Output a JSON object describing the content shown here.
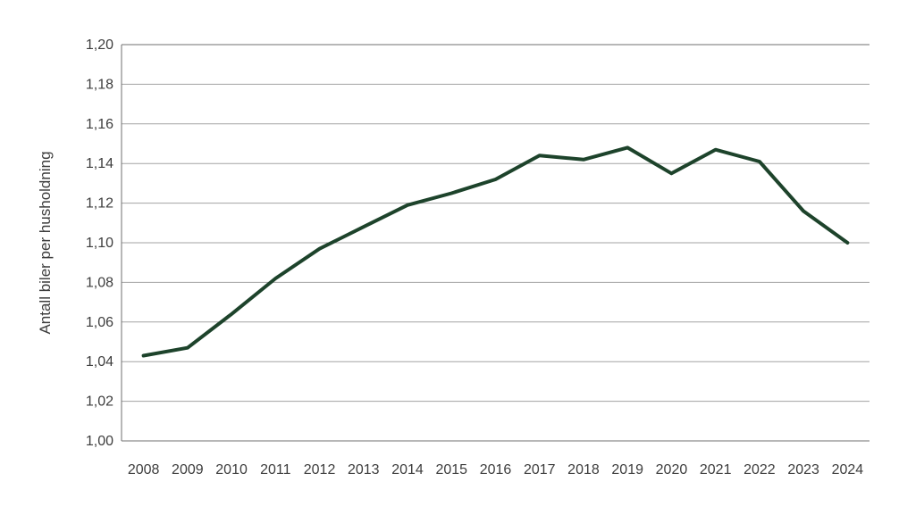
{
  "chart_data": {
    "type": "line",
    "title": "",
    "xlabel": "",
    "ylabel": "Antall biler per husholdning",
    "categories": [
      "2008",
      "2009",
      "2010",
      "2011",
      "2012",
      "2013",
      "2014",
      "2015",
      "2016",
      "2017",
      "2018",
      "2019",
      "2020",
      "2021",
      "2022",
      "2023",
      "2024"
    ],
    "series": [
      {
        "name": "Antall biler per husholdning",
        "values": [
          1.043,
          1.047,
          1.064,
          1.082,
          1.097,
          1.108,
          1.119,
          1.125,
          1.132,
          1.144,
          1.142,
          1.148,
          1.135,
          1.147,
          1.141,
          1.116,
          1.1
        ]
      }
    ],
    "ylim": [
      1.0,
      1.2
    ],
    "ytick_step": 0.02,
    "ytick_labels": [
      "1,00",
      "1,02",
      "1,04",
      "1,06",
      "1,08",
      "1,10",
      "1,12",
      "1,14",
      "1,16",
      "1,18",
      "1,20"
    ],
    "decimal_separator": ",",
    "grid": "horizontal",
    "legend_position": "none",
    "colors": {
      "line": "#1d432b",
      "gridline": "#a3a3a3",
      "axis": "#6f6f6f",
      "text": "#3d3d3d",
      "background": "#ffffff"
    }
  }
}
